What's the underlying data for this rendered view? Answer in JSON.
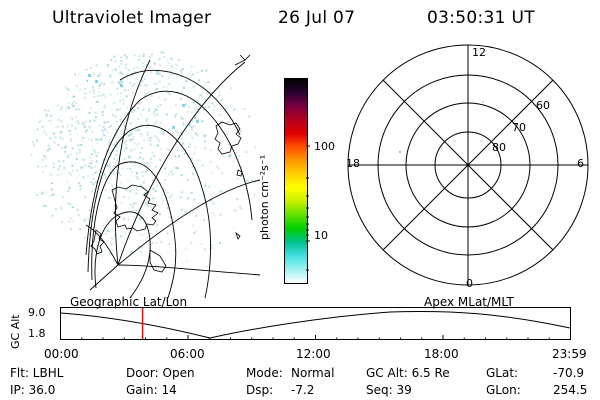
{
  "header": {
    "title": "Ultraviolet Imager",
    "date": "26 Jul 07",
    "time": "03:50:31 UT"
  },
  "colorbar": {
    "unit": "photon cm⁻²s⁻¹",
    "ticks": [
      "100",
      "10"
    ],
    "colors": [
      "#000000",
      "#2a0030",
      "#7a0040",
      "#b40020",
      "#e00000",
      "#ff5000",
      "#ff9800",
      "#ffd000",
      "#ffff00",
      "#c8f000",
      "#60e000",
      "#00d000",
      "#00c090",
      "#40e0e0",
      "#a0f0f0",
      "#ffffff"
    ]
  },
  "polar_plot": {
    "mlt_labels": {
      "top": "12",
      "bottom": "0",
      "left": "18",
      "right": "6"
    },
    "lat_labels": [
      "60",
      "70",
      "80"
    ]
  },
  "timeline": {
    "ylabel": "GC Alt",
    "y_ticks": [
      "9.0",
      "1.8"
    ],
    "left_title": "Geographic Lat/Lon",
    "right_title": "Apex MLat/MLT",
    "x_ticks": [
      "00:00",
      "06:00",
      "12:00",
      "18:00",
      "23:59"
    ],
    "marker_time_hours": 3.84,
    "marker_color": "#ff0000"
  },
  "info": {
    "row1": {
      "flt": "Flt: LBHL",
      "door": "Door: Open",
      "mode_label": "Mode:",
      "mode_value": "Normal",
      "gcalt": "GC Alt: 6.5 Re",
      "glat_label": "GLat:",
      "glat_value": "-70.9"
    },
    "row2": {
      "ip": "IP: 36.0",
      "gain": "Gain: 14",
      "dsp_label": "Dsp:",
      "dsp_value": "-7.2",
      "seq": "Seq: 39",
      "glon_label": "GLon:",
      "glon_value": "254.5"
    }
  }
}
